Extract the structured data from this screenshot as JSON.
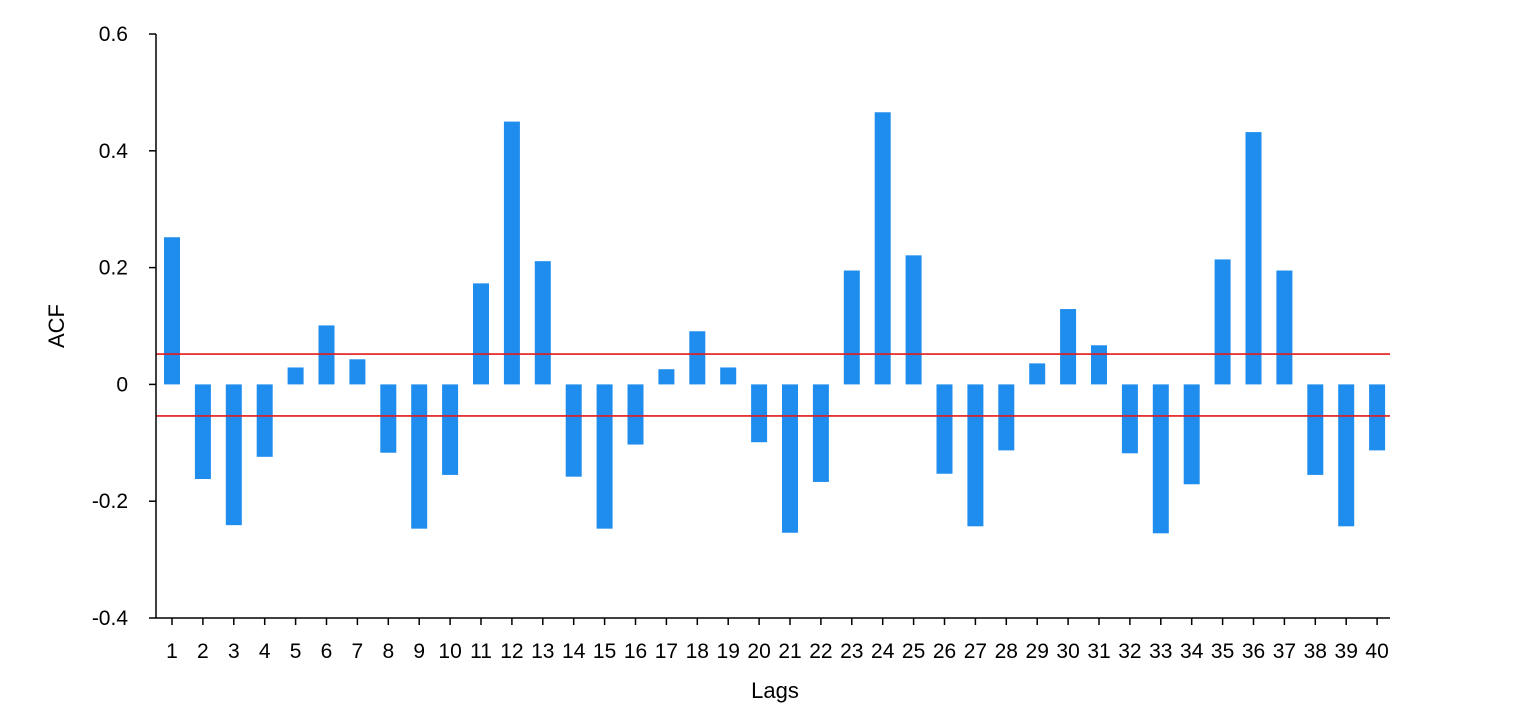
{
  "chart_data": {
    "type": "bar",
    "title": "",
    "xlabel": "Lags",
    "ylabel": "ACF",
    "ylim": [
      -0.4,
      0.6
    ],
    "yticks": [
      -0.4,
      -0.2,
      0,
      0.2,
      0.4,
      0.6
    ],
    "ytick_labels": [
      "-0.4",
      "-0.2",
      "0",
      "0.2",
      "0.4",
      "0.6"
    ],
    "categories": [
      "1",
      "2",
      "3",
      "4",
      "5",
      "6",
      "7",
      "8",
      "9",
      "10",
      "11",
      "12",
      "13",
      "14",
      "15",
      "16",
      "17",
      "18",
      "19",
      "20",
      "21",
      "22",
      "23",
      "24",
      "25",
      "26",
      "27",
      "28",
      "29",
      "30",
      "31",
      "32",
      "33",
      "34",
      "35",
      "36",
      "37",
      "38",
      "39",
      "40"
    ],
    "values": [
      0.252,
      -0.162,
      -0.241,
      -0.124,
      0.029,
      0.101,
      0.043,
      -0.117,
      -0.247,
      -0.155,
      0.173,
      0.45,
      0.211,
      -0.158,
      -0.247,
      -0.103,
      0.026,
      0.091,
      0.029,
      -0.099,
      -0.254,
      -0.167,
      0.195,
      0.466,
      0.221,
      -0.153,
      -0.243,
      -0.113,
      0.036,
      0.129,
      0.067,
      -0.118,
      -0.255,
      -0.171,
      0.214,
      0.432,
      0.195,
      -0.155,
      -0.243,
      -0.113
    ],
    "confidence_bounds": [
      0.052,
      -0.054
    ],
    "bar_color": "#1f8ded",
    "bound_color": "#e41a1c",
    "grid": false,
    "legend": "none"
  }
}
